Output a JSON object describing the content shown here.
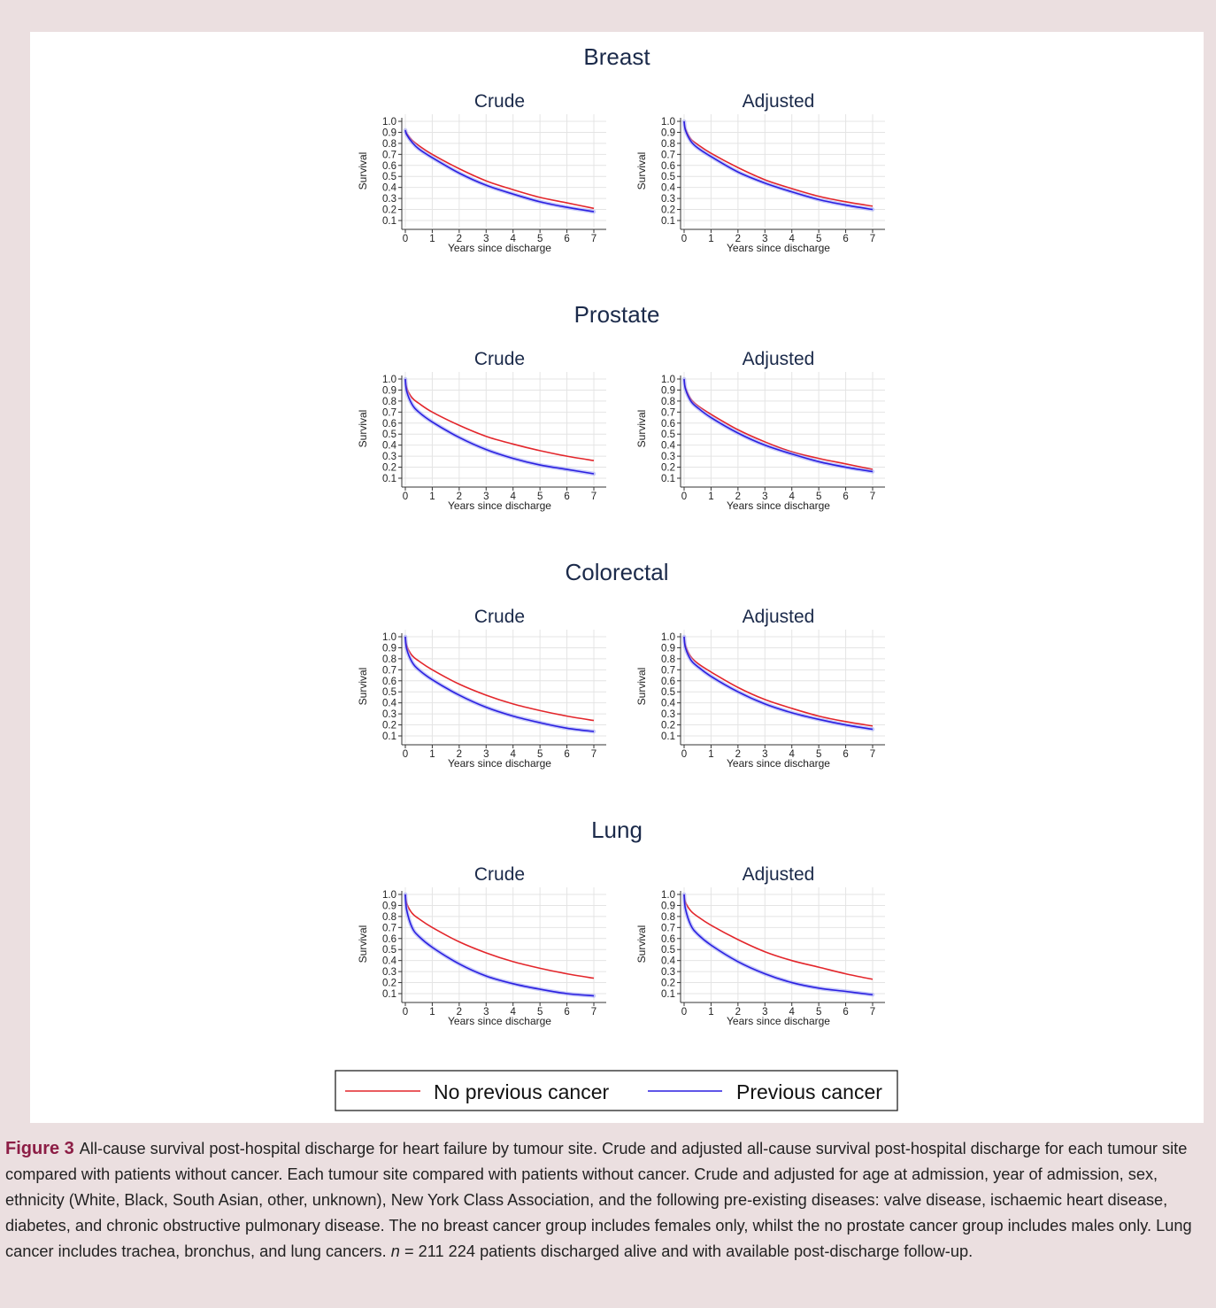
{
  "colors": {
    "no_previous_cancer": "#e3262b",
    "previous_cancer": "#2a1fe0",
    "title": "#1b2a4a",
    "caption_label": "#8c1d45",
    "background": "#ebdfe0"
  },
  "legend": {
    "no_previous": "No previous cancer",
    "previous": "Previous cancer"
  },
  "caption": {
    "label": "Figure 3",
    "text_before_n": "All-cause survival post-hospital discharge for heart failure by tumour site. Crude and adjusted all-cause survival post-hospital discharge for each tumour site compared with patients without cancer. Each tumour site compared with patients without cancer. Crude and adjusted for age at admission, year of admission, sex, ethnicity (White, Black, South Asian, other, unknown), New York Class Association, and the following pre-existing diseases: valve disease, ischaemic heart disease, diabetes, and chronic obstructive pulmonary disease. The no breast cancer group includes females only, whilst the no prostate cancer group includes males only. Lung cancer includes trachea, bronchus, and lung cancers.",
    "n_symbol": "n",
    "text_after_n": " = 211 224 patients discharged alive and with available post-discharge follow-up."
  },
  "chart_data": [
    {
      "type": "line",
      "site": "Breast",
      "panel": "Crude",
      "xlabel": "Years since discharge",
      "ylabel": "Survival",
      "xlim": [
        0,
        7
      ],
      "ylim": [
        0.1,
        1.0
      ],
      "xticks": [
        "0",
        "1",
        "2",
        "3",
        "4",
        "5",
        "6",
        "7"
      ],
      "yticks": [
        "1.0",
        "0.9",
        "0.8",
        "0.7",
        "0.6",
        "0.5",
        "0.4",
        "0.3",
        "0.2",
        "0.1"
      ],
      "x": [
        0,
        0.05,
        0.25,
        0.5,
        1,
        2,
        3,
        4,
        5,
        6,
        7
      ],
      "series": [
        {
          "name": "No previous cancer",
          "values": [
            0.92,
            0.89,
            0.83,
            0.78,
            0.7,
            0.57,
            0.46,
            0.38,
            0.31,
            0.26,
            0.21
          ]
        },
        {
          "name": "Previous cancer",
          "values": [
            0.92,
            0.88,
            0.81,
            0.75,
            0.67,
            0.53,
            0.42,
            0.34,
            0.27,
            0.22,
            0.18
          ]
        }
      ]
    },
    {
      "type": "line",
      "site": "Breast",
      "panel": "Adjusted",
      "xlabel": "Years since discharge",
      "ylabel": "Survival",
      "xlim": [
        0,
        7
      ],
      "ylim": [
        0.1,
        1.0
      ],
      "xticks": [
        "0",
        "1",
        "2",
        "3",
        "4",
        "5",
        "6",
        "7"
      ],
      "yticks": [
        "1.0",
        "0.9",
        "0.8",
        "0.7",
        "0.6",
        "0.5",
        "0.4",
        "0.3",
        "0.2",
        "0.1"
      ],
      "x": [
        0,
        0.05,
        0.25,
        0.5,
        1,
        2,
        3,
        4,
        5,
        6,
        7
      ],
      "series": [
        {
          "name": "No previous cancer",
          "values": [
            1.0,
            0.93,
            0.84,
            0.79,
            0.71,
            0.58,
            0.47,
            0.39,
            0.32,
            0.27,
            0.23
          ]
        },
        {
          "name": "Previous cancer",
          "values": [
            1.0,
            0.92,
            0.82,
            0.76,
            0.68,
            0.54,
            0.44,
            0.36,
            0.29,
            0.24,
            0.2
          ]
        }
      ]
    },
    {
      "type": "line",
      "site": "Prostate",
      "panel": "Crude",
      "xlabel": "Years since discharge",
      "ylabel": "Survival",
      "xlim": [
        0,
        7
      ],
      "ylim": [
        0.1,
        1.0
      ],
      "xticks": [
        "0",
        "1",
        "2",
        "3",
        "4",
        "5",
        "6",
        "7"
      ],
      "yticks": [
        "1.0",
        "0.9",
        "0.8",
        "0.7",
        "0.6",
        "0.5",
        "0.4",
        "0.3",
        "0.2",
        "0.1"
      ],
      "x": [
        0,
        0.05,
        0.25,
        0.5,
        1,
        2,
        3,
        4,
        5,
        6,
        7
      ],
      "series": [
        {
          "name": "No previous cancer",
          "values": [
            1.0,
            0.92,
            0.83,
            0.78,
            0.7,
            0.58,
            0.48,
            0.41,
            0.35,
            0.3,
            0.26
          ]
        },
        {
          "name": "Previous cancer",
          "values": [
            1.0,
            0.89,
            0.77,
            0.7,
            0.61,
            0.47,
            0.36,
            0.28,
            0.22,
            0.18,
            0.14
          ]
        }
      ]
    },
    {
      "type": "line",
      "site": "Prostate",
      "panel": "Adjusted",
      "xlabel": "Years since discharge",
      "ylabel": "Survival",
      "xlim": [
        0,
        7
      ],
      "ylim": [
        0.1,
        1.0
      ],
      "xticks": [
        "0",
        "1",
        "2",
        "3",
        "4",
        "5",
        "6",
        "7"
      ],
      "yticks": [
        "1.0",
        "0.9",
        "0.8",
        "0.7",
        "0.6",
        "0.5",
        "0.4",
        "0.3",
        "0.2",
        "0.1"
      ],
      "x": [
        0,
        0.05,
        0.25,
        0.5,
        1,
        2,
        3,
        4,
        5,
        6,
        7
      ],
      "series": [
        {
          "name": "No previous cancer",
          "values": [
            1.0,
            0.92,
            0.82,
            0.76,
            0.68,
            0.54,
            0.43,
            0.34,
            0.28,
            0.23,
            0.18
          ]
        },
        {
          "name": "Previous cancer",
          "values": [
            1.0,
            0.91,
            0.8,
            0.74,
            0.65,
            0.51,
            0.4,
            0.32,
            0.25,
            0.2,
            0.16
          ]
        }
      ]
    },
    {
      "type": "line",
      "site": "Colorectal",
      "panel": "Crude",
      "xlabel": "Years since discharge",
      "ylabel": "Survival",
      "xlim": [
        0,
        7
      ],
      "ylim": [
        0.1,
        1.0
      ],
      "xticks": [
        "0",
        "1",
        "2",
        "3",
        "4",
        "5",
        "6",
        "7"
      ],
      "yticks": [
        "1.0",
        "0.9",
        "0.8",
        "0.7",
        "0.6",
        "0.5",
        "0.4",
        "0.3",
        "0.2",
        "0.1"
      ],
      "x": [
        0,
        0.05,
        0.25,
        0.5,
        1,
        2,
        3,
        4,
        5,
        6,
        7
      ],
      "series": [
        {
          "name": "No previous cancer",
          "values": [
            1.0,
            0.92,
            0.83,
            0.78,
            0.7,
            0.57,
            0.47,
            0.39,
            0.33,
            0.28,
            0.24
          ]
        },
        {
          "name": "Previous cancer",
          "values": [
            1.0,
            0.89,
            0.77,
            0.7,
            0.61,
            0.47,
            0.36,
            0.28,
            0.22,
            0.17,
            0.14
          ]
        }
      ]
    },
    {
      "type": "line",
      "site": "Colorectal",
      "panel": "Adjusted",
      "xlabel": "Years since discharge",
      "ylabel": "Survival",
      "xlim": [
        0,
        7
      ],
      "ylim": [
        0.1,
        1.0
      ],
      "xticks": [
        "0",
        "1",
        "2",
        "3",
        "4",
        "5",
        "6",
        "7"
      ],
      "yticks": [
        "1.0",
        "0.9",
        "0.8",
        "0.7",
        "0.6",
        "0.5",
        "0.4",
        "0.3",
        "0.2",
        "0.1"
      ],
      "x": [
        0,
        0.05,
        0.25,
        0.5,
        1,
        2,
        3,
        4,
        5,
        6,
        7
      ],
      "series": [
        {
          "name": "No previous cancer",
          "values": [
            1.0,
            0.92,
            0.82,
            0.76,
            0.68,
            0.54,
            0.43,
            0.35,
            0.28,
            0.23,
            0.19
          ]
        },
        {
          "name": "Previous cancer",
          "values": [
            1.0,
            0.9,
            0.79,
            0.73,
            0.64,
            0.5,
            0.39,
            0.31,
            0.25,
            0.2,
            0.16
          ]
        }
      ]
    },
    {
      "type": "line",
      "site": "Lung",
      "panel": "Crude",
      "xlabel": "Years since discharge",
      "ylabel": "Survival",
      "xlim": [
        0,
        7
      ],
      "ylim": [
        0.1,
        1.0
      ],
      "xticks": [
        "0",
        "1",
        "2",
        "3",
        "4",
        "5",
        "6",
        "7"
      ],
      "yticks": [
        "1.0",
        "0.9",
        "0.8",
        "0.7",
        "0.6",
        "0.5",
        "0.4",
        "0.3",
        "0.2",
        "0.1"
      ],
      "x": [
        0,
        0.05,
        0.25,
        0.5,
        1,
        2,
        3,
        4,
        5,
        6,
        7
      ],
      "series": [
        {
          "name": "No previous cancer",
          "values": [
            1.0,
            0.92,
            0.83,
            0.78,
            0.7,
            0.57,
            0.47,
            0.39,
            0.33,
            0.28,
            0.24
          ]
        },
        {
          "name": "Previous cancer",
          "values": [
            1.0,
            0.86,
            0.7,
            0.62,
            0.52,
            0.37,
            0.26,
            0.19,
            0.14,
            0.1,
            0.08
          ]
        }
      ]
    },
    {
      "type": "line",
      "site": "Lung",
      "panel": "Adjusted",
      "xlabel": "Years since discharge",
      "ylabel": "Survival",
      "xlim": [
        0,
        7
      ],
      "ylim": [
        0.1,
        1.0
      ],
      "xticks": [
        "0",
        "1",
        "2",
        "3",
        "4",
        "5",
        "6",
        "7"
      ],
      "yticks": [
        "1.0",
        "0.9",
        "0.8",
        "0.7",
        "0.6",
        "0.5",
        "0.4",
        "0.3",
        "0.2",
        "0.1"
      ],
      "x": [
        0,
        0.05,
        0.25,
        0.5,
        1,
        2,
        3,
        4,
        5,
        6,
        7
      ],
      "series": [
        {
          "name": "No previous cancer",
          "values": [
            1.0,
            0.93,
            0.85,
            0.8,
            0.72,
            0.59,
            0.48,
            0.4,
            0.34,
            0.28,
            0.23
          ]
        },
        {
          "name": "Previous cancer",
          "values": [
            1.0,
            0.87,
            0.72,
            0.64,
            0.54,
            0.39,
            0.28,
            0.2,
            0.15,
            0.12,
            0.09
          ]
        }
      ]
    }
  ]
}
